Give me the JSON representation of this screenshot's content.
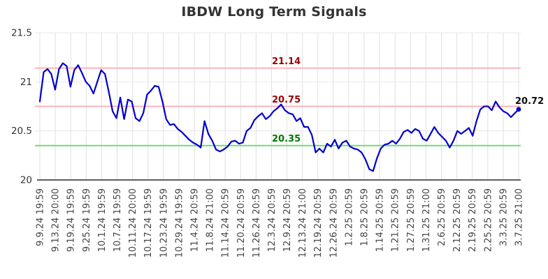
{
  "title": "IBDW Long Term Signals",
  "chart_data": {
    "type": "line",
    "title": "IBDW Long Term Signals",
    "series_name": "IBDW price",
    "series_color": "#0000cc",
    "x_labels": [
      "9.9.24 19:59",
      "9.13.24 20:00",
      "9.19.24 19:59",
      "9.25.24 19:59",
      "10.1.24 19:59",
      "10.7.24 19:59",
      "10.11.24 20:00",
      "10.17.24 19:59",
      "10.23.24 19:59",
      "10.29.24 19:59",
      "11.4.24 20:59",
      "11.8.24 21:00",
      "11.14.24 20:59",
      "11.20.24 20:59",
      "11.26.24 20:59",
      "12.3.24 20:59",
      "12.9.24 20:59",
      "12.13.24 21:00",
      "12.19.24 20:59",
      "12.26.24 20:59",
      "1.2.25 20:59",
      "1.8.25 20:59",
      "1.14.25 20:59",
      "1.21.25 20:59",
      "1.27.25 20:59",
      "1.31.25 21:00",
      "2.6.25 20:59",
      "2.12.25 20:59",
      "2.19.25 20:59",
      "2.25.25 20:59",
      "3.3.25 20:59",
      "3.7.25 21:00"
    ],
    "values": [
      20.8,
      21.1,
      21.13,
      21.08,
      20.92,
      21.13,
      21.19,
      21.16,
      20.95,
      21.12,
      21.17,
      21.09,
      21.0,
      20.96,
      20.88,
      21.0,
      21.12,
      21.08,
      20.9,
      20.7,
      20.63,
      20.84,
      20.62,
      20.82,
      20.8,
      20.63,
      20.6,
      20.68,
      20.87,
      20.91,
      20.96,
      20.95,
      20.8,
      20.62,
      20.56,
      20.57,
      20.52,
      20.49,
      20.45,
      20.41,
      20.38,
      20.36,
      20.33,
      20.6,
      20.47,
      20.4,
      20.31,
      20.29,
      20.31,
      20.34,
      20.39,
      20.4,
      20.37,
      20.38,
      20.5,
      20.53,
      20.61,
      20.65,
      20.68,
      20.62,
      20.65,
      20.7,
      20.73,
      20.77,
      20.71,
      20.68,
      20.67,
      20.6,
      20.63,
      20.54,
      20.54,
      20.46,
      20.28,
      20.32,
      20.28,
      20.37,
      20.34,
      20.41,
      20.32,
      20.38,
      20.4,
      20.34,
      20.32,
      20.31,
      20.28,
      20.21,
      20.11,
      20.09,
      20.22,
      20.32,
      20.36,
      20.37,
      20.4,
      20.37,
      20.42,
      20.49,
      20.51,
      20.48,
      20.52,
      20.5,
      20.42,
      20.4,
      20.47,
      20.54,
      20.48,
      20.44,
      20.4,
      20.33,
      20.4,
      20.5,
      20.47,
      20.5,
      20.53,
      20.45,
      20.6,
      20.72,
      20.75,
      20.75,
      20.71,
      20.8,
      20.74,
      20.7,
      20.68,
      20.64,
      20.68,
      20.72
    ],
    "ylim": [
      20,
      21.5
    ],
    "yticks": [
      21.5,
      21.0,
      20.5,
      20.0
    ],
    "ytick_labels": [
      "21.5",
      "21",
      "20.5",
      "20"
    ],
    "signal_lines": [
      {
        "label": "21.14",
        "value": 21.14,
        "line_color": "#fbb4b9",
        "label_color": "#990000"
      },
      {
        "label": "20.75",
        "value": 20.75,
        "line_color": "#fbb4b9",
        "label_color": "#990000"
      },
      {
        "label": "20.35",
        "value": 20.35,
        "line_color": "#70dd70",
        "label_color": "#007700"
      }
    ],
    "end_label": {
      "text": "20.72",
      "value": 20.72,
      "color": "#111111"
    },
    "grid": true,
    "legend_position": "none"
  },
  "colors": {
    "grid_vertical": "#e0e0e0",
    "grid_horizontal": "#e7e7e7",
    "axis": "#2a2a2a",
    "tick_text": "#444444",
    "title_text": "#333333"
  }
}
